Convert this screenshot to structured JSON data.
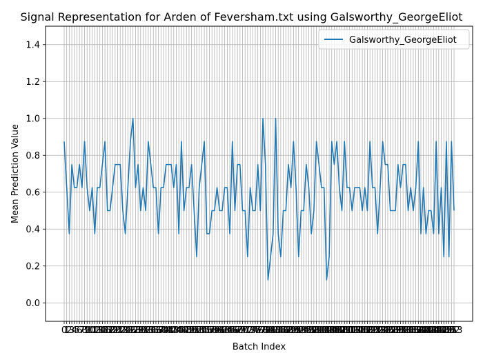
{
  "chart_data": {
    "type": "line",
    "title": "Signal Representation for Arden of Feversham.txt using Galsworthy_GeorgeEliot",
    "xlabel": "Batch Index",
    "ylabel": "Mean Prediction Value",
    "ylim": [
      -0.1,
      1.5
    ],
    "yticks": [
      "0.0",
      "0.2",
      "0.4",
      "0.6",
      "0.8",
      "1.0",
      "1.2",
      "1.4"
    ],
    "grid": true,
    "legend_position": "top-right",
    "series": [
      {
        "name": "Galsworthy_GeorgeEliot",
        "color": "#1f77b4",
        "values": [
          0.875,
          0.625,
          0.375,
          0.75,
          0.625,
          0.625,
          0.75,
          0.625,
          0.875,
          0.625,
          0.5,
          0.625,
          0.375,
          0.625,
          0.625,
          0.75,
          0.875,
          0.5,
          0.5,
          0.625,
          0.75,
          0.75,
          0.75,
          0.5,
          0.375,
          0.625,
          0.875,
          1.0,
          0.625,
          0.75,
          0.5,
          0.625,
          0.5,
          0.875,
          0.75,
          0.625,
          0.625,
          0.375,
          0.625,
          0.625,
          0.75,
          0.75,
          0.75,
          0.625,
          0.75,
          0.375,
          0.875,
          0.5,
          0.625,
          0.625,
          0.75,
          0.5,
          0.25,
          0.625,
          0.75,
          0.875,
          0.375,
          0.375,
          0.5,
          0.5,
          0.625,
          0.5,
          0.5,
          0.625,
          0.625,
          0.375,
          0.875,
          0.5,
          0.75,
          0.75,
          0.5,
          0.5,
          0.25,
          0.625,
          0.5,
          0.5,
          0.75,
          0.5,
          1.0,
          0.75,
          0.125,
          0.25,
          0.375,
          1.0,
          0.375,
          0.25,
          0.5,
          0.5,
          0.75,
          0.625,
          0.875,
          0.625,
          0.25,
          0.5,
          0.5,
          0.75,
          0.625,
          0.375,
          0.5,
          0.875,
          0.75,
          0.625,
          0.625,
          0.125,
          0.25,
          0.875,
          0.75,
          0.875,
          0.625,
          0.5,
          0.875,
          0.625,
          0.625,
          0.5,
          0.625,
          0.625,
          0.625,
          0.5,
          0.625,
          0.5,
          0.875,
          0.625,
          0.625,
          0.375,
          0.625,
          0.875,
          0.75,
          0.75,
          0.5,
          0.5,
          0.5,
          0.75,
          0.625,
          0.75,
          0.75,
          0.5,
          0.625,
          0.5,
          0.625,
          0.875,
          0.375,
          0.625,
          0.375,
          0.5,
          0.5,
          0.375,
          0.875,
          0.375,
          0.625,
          0.25,
          0.875,
          0.25,
          0.875,
          0.5
        ]
      }
    ],
    "xticks": [
      "0",
      "1",
      "2",
      "3",
      "4",
      "5",
      "6",
      "7",
      "8",
      "9",
      "10",
      "11",
      "12",
      "13",
      "14",
      "15",
      "16",
      "17",
      "18",
      "19",
      "20",
      "21",
      "22",
      "23",
      "24",
      "25",
      "26",
      "27",
      "28",
      "29",
      "30",
      "31",
      "32",
      "33",
      "34",
      "35",
      "36",
      "37",
      "38",
      "39",
      "40",
      "41",
      "42",
      "43",
      "44",
      "45",
      "46",
      "47",
      "48",
      "49",
      "50",
      "51",
      "52",
      "53",
      "54",
      "55",
      "56",
      "57",
      "58",
      "59",
      "60",
      "61",
      "62",
      "63",
      "64",
      "65",
      "66",
      "67",
      "68",
      "69",
      "70",
      "71",
      "72",
      "73",
      "74",
      "75",
      "76",
      "77",
      "78",
      "79",
      "80",
      "81",
      "82",
      "83",
      "84",
      "85",
      "86",
      "87",
      "88",
      "89",
      "90",
      "91",
      "92",
      "93",
      "94",
      "95",
      "96",
      "97",
      "98",
      "99",
      "100",
      "101",
      "102",
      "103",
      "104",
      "105",
      "106",
      "107",
      "108",
      "109",
      "110",
      "111",
      "112",
      "113",
      "114",
      "115",
      "116",
      "117",
      "118",
      "119",
      "120",
      "121",
      "122",
      "123",
      "124",
      "125",
      "126",
      "127",
      "128",
      "129",
      "130",
      "131",
      "132",
      "133",
      "134",
      "135",
      "136",
      "137",
      "138",
      "139",
      "140",
      "141",
      "142",
      "143",
      "144",
      "145",
      "146",
      "147",
      "148",
      "149",
      "150",
      "151",
      "152",
      "153"
    ]
  }
}
